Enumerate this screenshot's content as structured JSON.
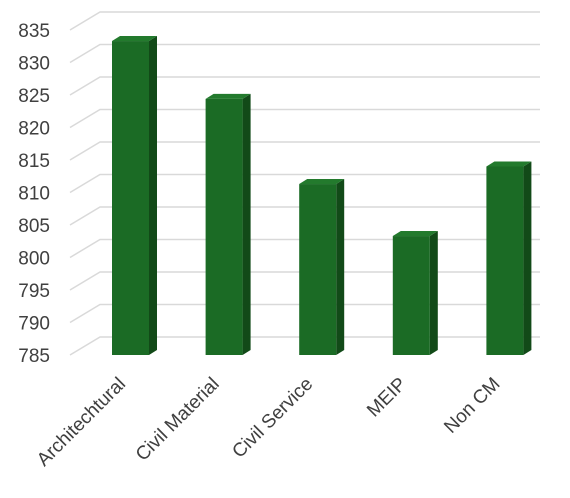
{
  "chart_data": {
    "type": "bar",
    "style": "3d-column",
    "categories": [
      "Architechtural",
      "Civil Material",
      "Civil Service",
      "MEIP",
      "Non CM"
    ],
    "values": [
      833.3,
      824.4,
      811.3,
      803.3,
      814.0
    ],
    "yticks": [
      835,
      830,
      825,
      820,
      815,
      810,
      805,
      800,
      795,
      790,
      785
    ],
    "ylim": [
      785,
      835
    ],
    "grid": true,
    "legend": "none",
    "colors": {
      "bar_front": "#1b6b25",
      "bar_top": "#237a2d",
      "bar_side": "#124a18",
      "grid": "#d9d9d9",
      "text": "#404040"
    }
  }
}
